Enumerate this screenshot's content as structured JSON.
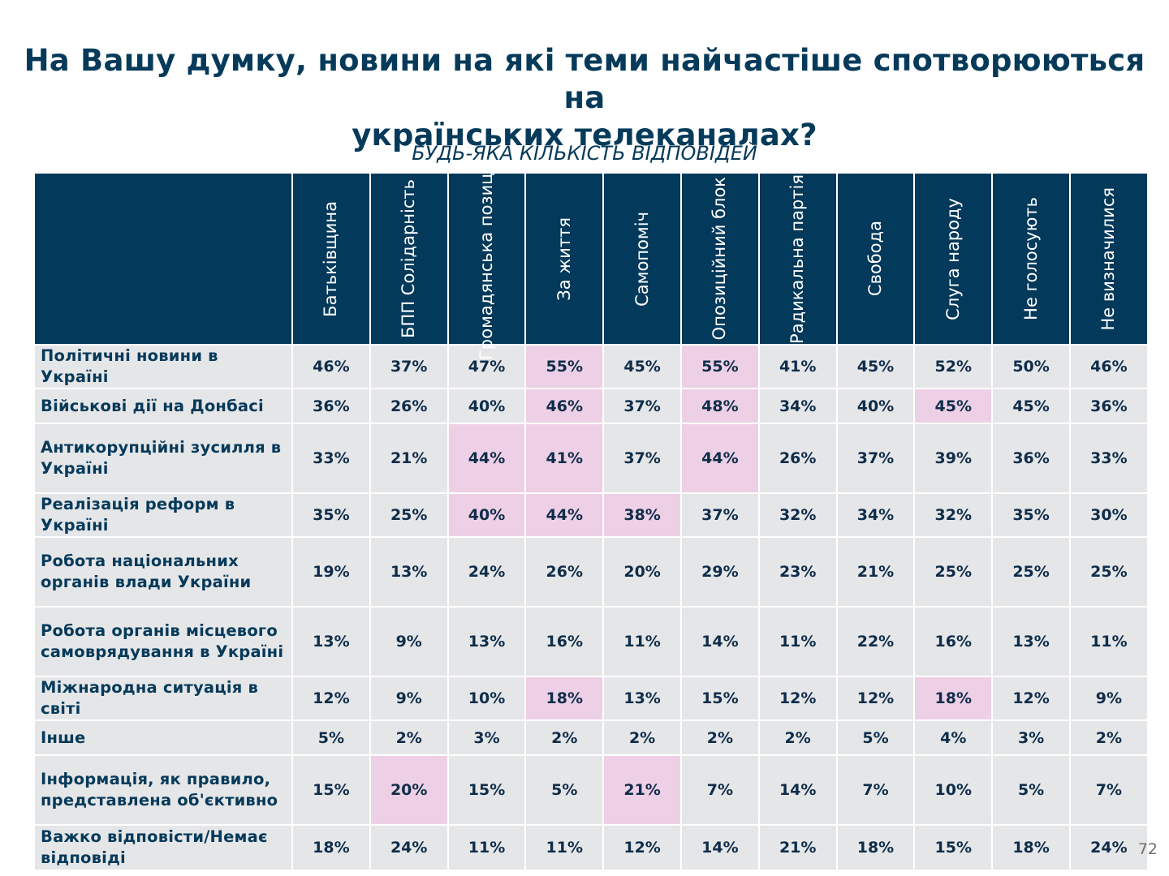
{
  "page": {
    "title_line1": "На Вашу думку, новини на які теми найчастіше спотворюються на",
    "title_line2": "українських телеканалах?",
    "subtitle": "БУДЬ-ЯКА КІЛЬКІСТЬ ВІДПОВІДЕЙ",
    "page_number": "72"
  },
  "colors": {
    "header_bg": "#03395a",
    "cell_bg": "#e5e6e8",
    "highlight_bg": "#eed0e6",
    "title_text": "#063a5a"
  },
  "chart_data": {
    "type": "table",
    "title": "На Вашу думку, новини на які теми найчастіше спотворюються на українських телеканалах?",
    "subtitle": "БУДЬ-ЯКА КІЛЬКІСТЬ ВІДПОВІДЕЙ",
    "unit": "%",
    "columns": [
      {
        "label": "Батьківщина"
      },
      {
        "label": "БПП Солідарність"
      },
      {
        "label": "Громадянська\nпозиція"
      },
      {
        "label": "За життя"
      },
      {
        "label": "Самопоміч"
      },
      {
        "label": "Опозиційний блок"
      },
      {
        "label": "Радикальна\nпартія"
      },
      {
        "label": "Свобода"
      },
      {
        "label": "Слуга народу"
      },
      {
        "label": "Не голосують"
      },
      {
        "label": "Не визначилися"
      }
    ],
    "rows": [
      {
        "label": "Політичні новини в Україні",
        "values": [
          "46%",
          "37%",
          "47%",
          "55%",
          "45%",
          "55%",
          "41%",
          "45%",
          "52%",
          "50%",
          "46%"
        ],
        "highlight": [
          false,
          false,
          false,
          true,
          false,
          true,
          false,
          false,
          false,
          false,
          false
        ]
      },
      {
        "label": "Військові дії на Донбасі",
        "values": [
          "36%",
          "26%",
          "40%",
          "46%",
          "37%",
          "48%",
          "34%",
          "40%",
          "45%",
          "45%",
          "36%"
        ],
        "highlight": [
          false,
          false,
          false,
          true,
          false,
          true,
          false,
          false,
          true,
          false,
          false
        ]
      },
      {
        "label": "Антикорупційні зусилля в Україні",
        "values": [
          "33%",
          "21%",
          "44%",
          "41%",
          "37%",
          "44%",
          "26%",
          "37%",
          "39%",
          "36%",
          "33%"
        ],
        "highlight": [
          false,
          false,
          true,
          true,
          false,
          true,
          false,
          false,
          false,
          false,
          false
        ]
      },
      {
        "label": "Реалізація реформ в Україні",
        "values": [
          "35%",
          "25%",
          "40%",
          "44%",
          "38%",
          "37%",
          "32%",
          "34%",
          "32%",
          "35%",
          "30%"
        ],
        "highlight": [
          false,
          false,
          true,
          true,
          true,
          false,
          false,
          false,
          false,
          false,
          false
        ]
      },
      {
        "label": "Робота національних органів влади України",
        "values": [
          "19%",
          "13%",
          "24%",
          "26%",
          "20%",
          "29%",
          "23%",
          "21%",
          "25%",
          "25%",
          "25%"
        ],
        "highlight": [
          false,
          false,
          false,
          false,
          false,
          false,
          false,
          false,
          false,
          false,
          false
        ]
      },
      {
        "label": "Робота органів місцевого самоврядування в Україні",
        "values": [
          "13%",
          "9%",
          "13%",
          "16%",
          "11%",
          "14%",
          "11%",
          "22%",
          "16%",
          "13%",
          "11%"
        ],
        "highlight": [
          false,
          false,
          false,
          false,
          false,
          false,
          false,
          false,
          false,
          false,
          false
        ]
      },
      {
        "label": "Міжнародна ситуація в світі",
        "values": [
          "12%",
          "9%",
          "10%",
          "18%",
          "13%",
          "15%",
          "12%",
          "12%",
          "18%",
          "12%",
          "9%"
        ],
        "highlight": [
          false,
          false,
          false,
          true,
          false,
          false,
          false,
          false,
          true,
          false,
          false
        ]
      },
      {
        "label": "Інше",
        "values": [
          "5%",
          "2%",
          "3%",
          "2%",
          "2%",
          "2%",
          "2%",
          "5%",
          "4%",
          "3%",
          "2%"
        ],
        "highlight": [
          false,
          false,
          false,
          false,
          false,
          false,
          false,
          false,
          false,
          false,
          false
        ]
      },
      {
        "label": "Інформація, як правило, представлена об'єктивно",
        "values": [
          "15%",
          "20%",
          "15%",
          "5%",
          "21%",
          "7%",
          "14%",
          "7%",
          "10%",
          "5%",
          "7%"
        ],
        "highlight": [
          false,
          true,
          false,
          false,
          true,
          false,
          false,
          false,
          false,
          false,
          false
        ]
      },
      {
        "label": "Важко відповісти/Немає відповіді",
        "values": [
          "18%",
          "24%",
          "11%",
          "11%",
          "12%",
          "14%",
          "21%",
          "18%",
          "15%",
          "18%",
          "24%"
        ],
        "highlight": [
          false,
          false,
          false,
          false,
          false,
          false,
          false,
          false,
          false,
          false,
          false
        ]
      }
    ]
  }
}
